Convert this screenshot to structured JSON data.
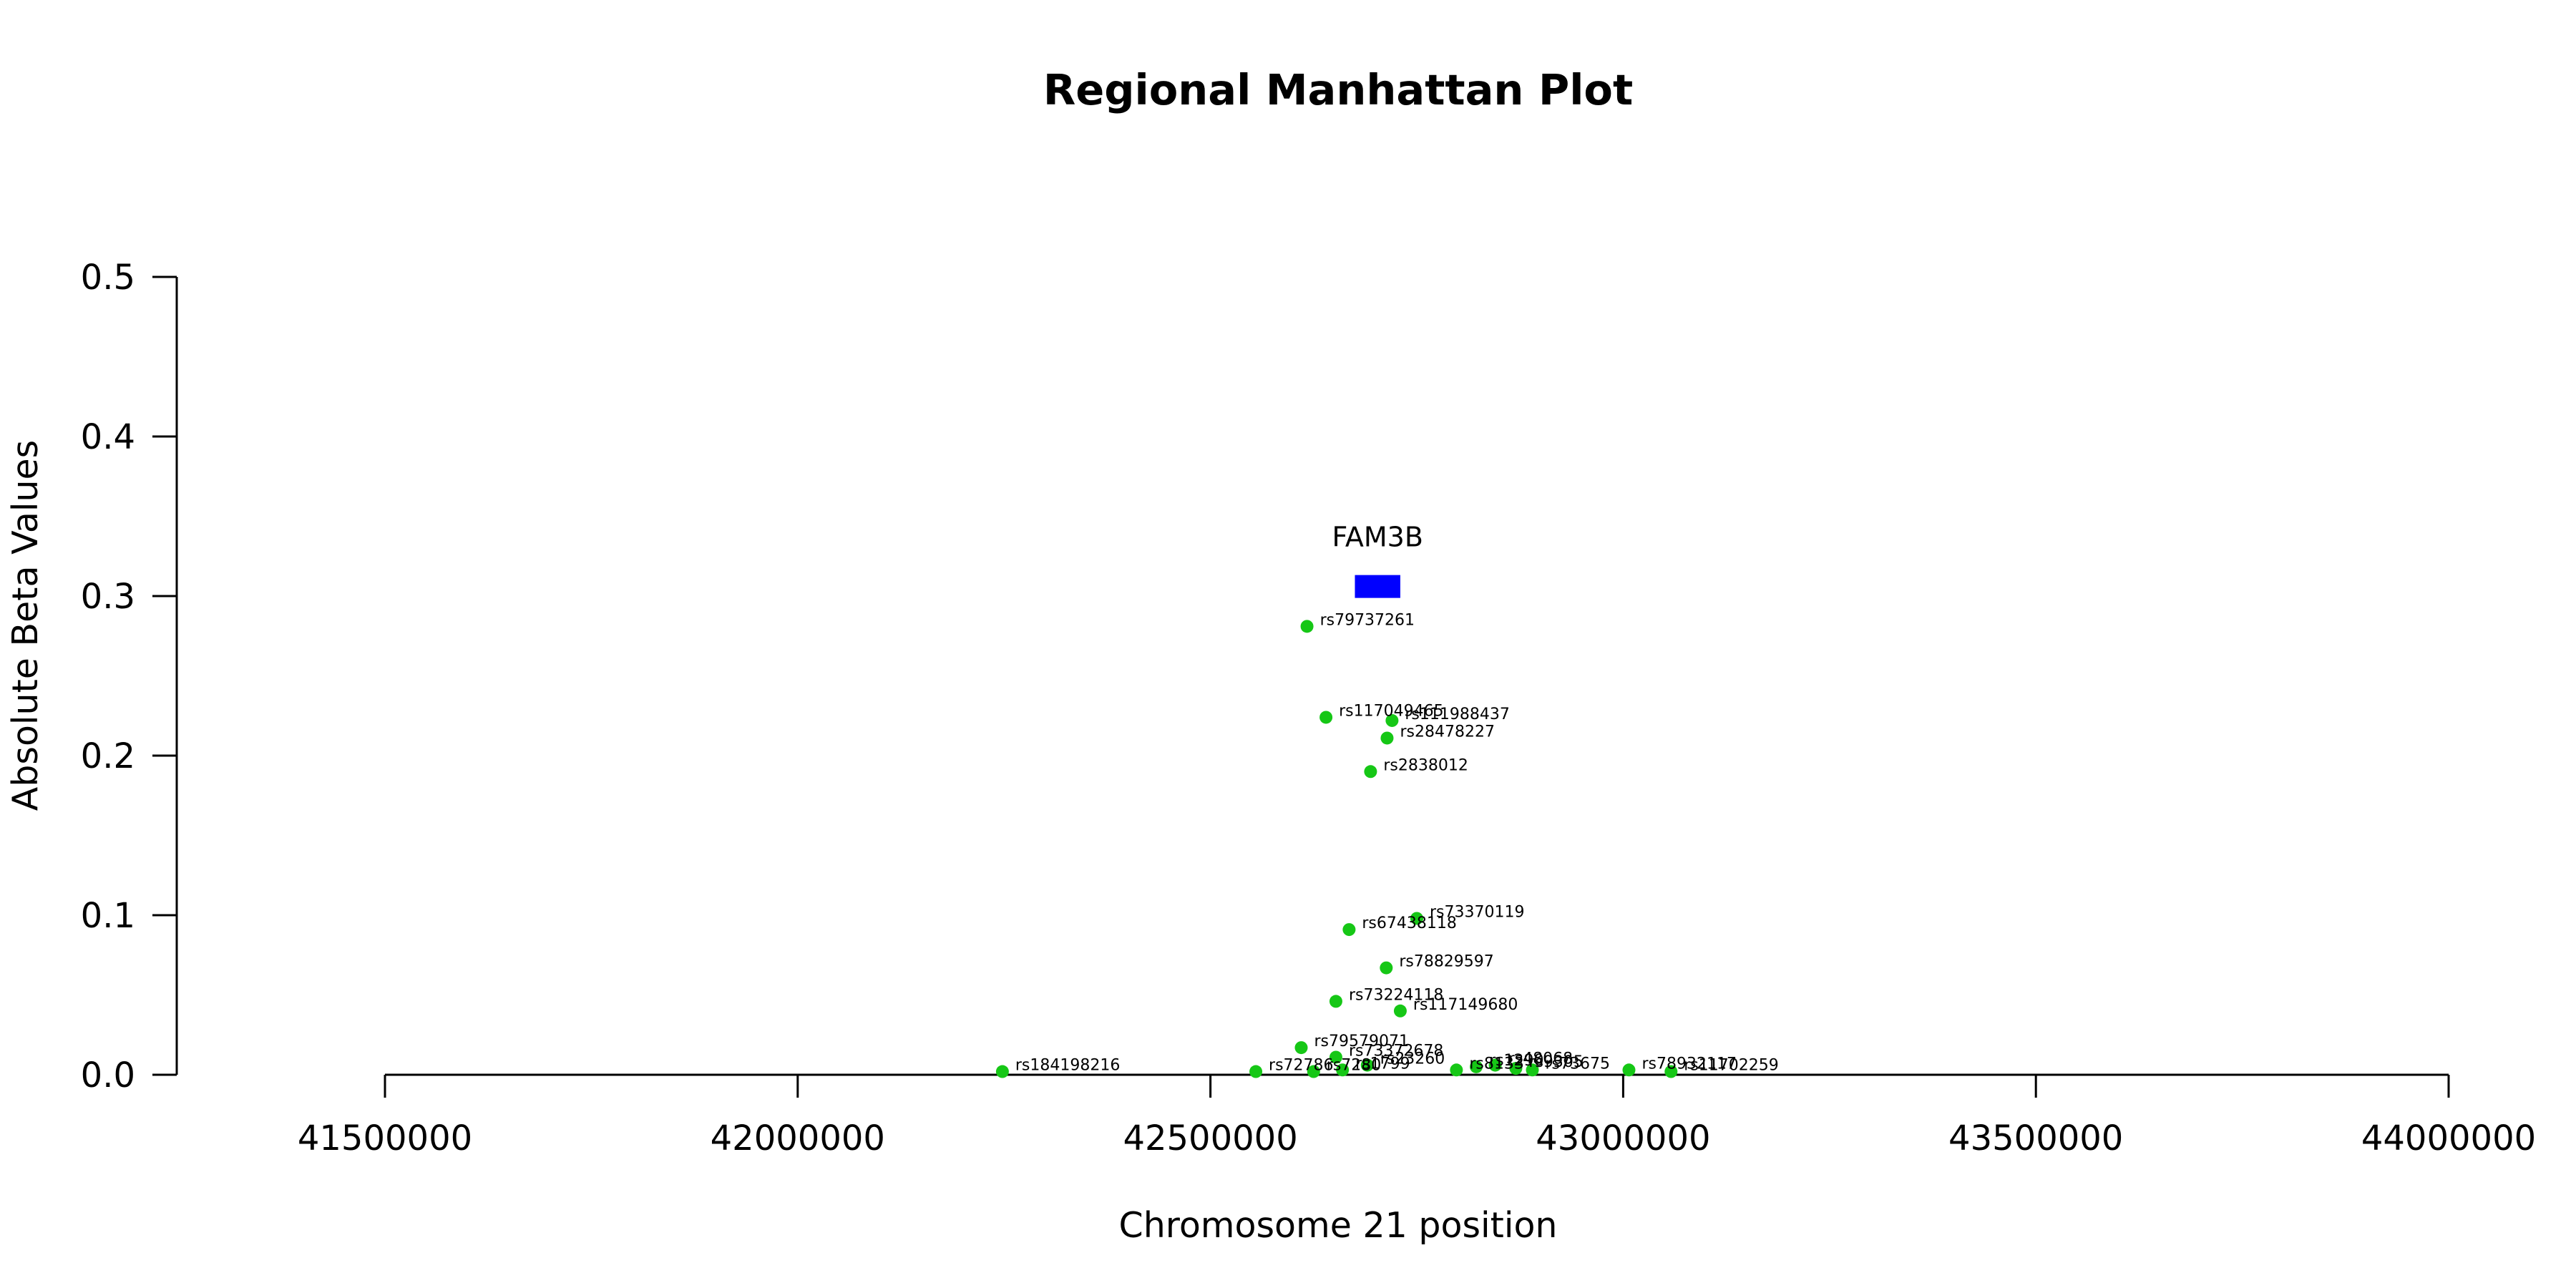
{
  "chart_data": {
    "type": "scatter",
    "title": "Regional Manhattan Plot",
    "xlabel": "Chromosome 21 position",
    "ylabel": "Absolute Beta Values",
    "xlim": [
      41500000,
      44000000
    ],
    "ylim": [
      0,
      0.5
    ],
    "x_ticks": [
      41500000,
      42000000,
      42500000,
      43000000,
      43500000,
      44000000
    ],
    "x_tick_labels": [
      "41500000",
      "42000000",
      "42500000",
      "43000000",
      "43500000",
      "44000000"
    ],
    "y_ticks": [
      0.0,
      0.1,
      0.2,
      0.3,
      0.4,
      0.5
    ],
    "y_tick_labels": [
      "0.0",
      "0.1",
      "0.2",
      "0.3",
      "0.4",
      "0.5"
    ],
    "point_color": "#16c716",
    "gene": {
      "name": "FAM3B",
      "start": 42675000,
      "end": 42730000,
      "y": 0.306,
      "color": "#0000ff"
    },
    "points": [
      {
        "label": "rs79737261",
        "x": 42617000,
        "y": 0.281
      },
      {
        "label": "rs117049465",
        "x": 42640000,
        "y": 0.224
      },
      {
        "label": "rs111988437",
        "x": 42720000,
        "y": 0.222
      },
      {
        "label": "rs28478227",
        "x": 42714000,
        "y": 0.211
      },
      {
        "label": "rs2838012",
        "x": 42694000,
        "y": 0.19
      },
      {
        "label": "rs73370119",
        "x": 42750000,
        "y": 0.098
      },
      {
        "label": "rs67438118",
        "x": 42668000,
        "y": 0.091
      },
      {
        "label": "rs78829597",
        "x": 42713000,
        "y": 0.067
      },
      {
        "label": "rs73224118",
        "x": 42652000,
        "y": 0.046
      },
      {
        "label": "rs117149680",
        "x": 42730000,
        "y": 0.04
      },
      {
        "label": "rs79579071",
        "x": 42610000,
        "y": 0.017
      },
      {
        "label": "rs73372678",
        "x": 42652000,
        "y": 0.011
      },
      {
        "label": "rs184198216",
        "x": 42248000,
        "y": 0.002
      },
      {
        "label": "rs72786",
        "x": 42555000,
        "y": 0.002
      },
      {
        "label": "rs7280",
        "x": 42625000,
        "y": 0.002
      },
      {
        "label": "rs1799",
        "x": 42660000,
        "y": 0.003
      },
      {
        "label": "rs23260",
        "x": 42690000,
        "y": 0.006
      },
      {
        "label": "rs8133",
        "x": 42798000,
        "y": 0.003
      },
      {
        "label": "rs1290",
        "x": 42822000,
        "y": 0.005
      },
      {
        "label": "rs48068",
        "x": 42845000,
        "y": 0.006
      },
      {
        "label": "rs9305",
        "x": 42870000,
        "y": 0.004
      },
      {
        "label": "rs73675",
        "x": 42890000,
        "y": 0.003
      },
      {
        "label": "rs78932117",
        "x": 43007000,
        "y": 0.003
      },
      {
        "label": "rs11702259",
        "x": 43058000,
        "y": 0.002
      }
    ]
  }
}
